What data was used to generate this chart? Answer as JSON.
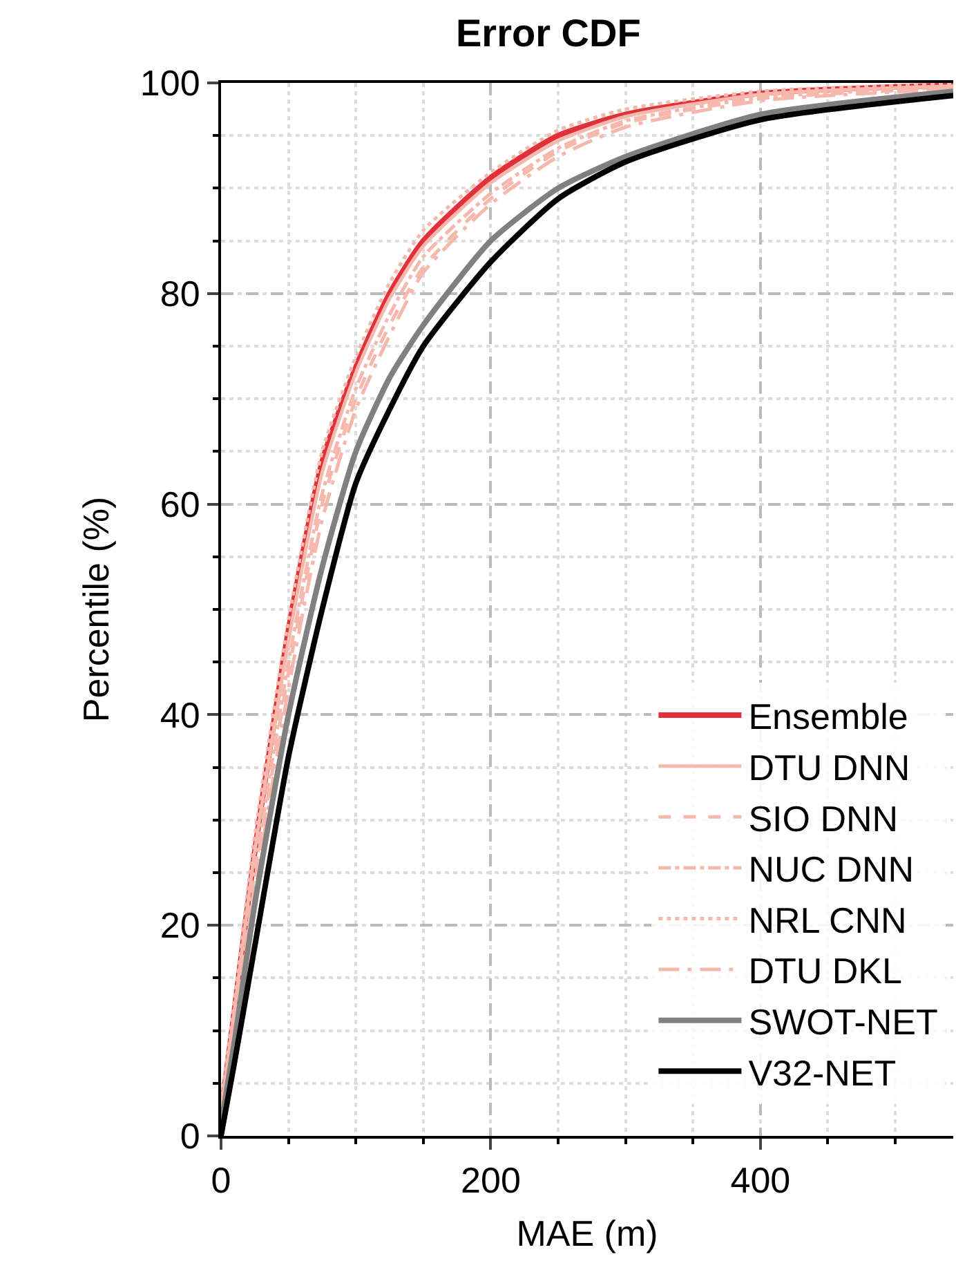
{
  "chart_data": {
    "type": "line",
    "title": "Error CDF",
    "xlabel": "MAE (m)",
    "ylabel": "Percentile (%)",
    "xlim": [
      0,
      543
    ],
    "xticks": [
      0,
      200,
      400
    ],
    "ylim": [
      0,
      100
    ],
    "yticks": [
      0,
      20,
      40,
      60,
      80,
      100
    ],
    "grid": true,
    "legend": "bottom right",
    "marker": "none",
    "x": [
      0,
      10,
      25,
      50,
      75,
      100,
      125,
      150,
      200,
      250,
      300,
      400,
      543
    ],
    "series": [
      {
        "name": "Ensemble",
        "color": "#e0303a",
        "line_style": "solid",
        "values": [
          2,
          12,
          27,
          48,
          64,
          73,
          80,
          85,
          91,
          95,
          97,
          99,
          99.8
        ]
      },
      {
        "name": "DTU DNN",
        "color": "#f6b8ad",
        "line_style": "solid",
        "values": [
          2.5,
          12,
          27,
          47,
          63,
          72.5,
          79.5,
          84.5,
          90.5,
          94.5,
          96.8,
          98.9,
          99.7
        ]
      },
      {
        "name": "SIO DNN",
        "color": "#f6b8ad",
        "line_style": "dashed",
        "values": [
          1.5,
          10,
          24,
          44,
          60,
          70,
          77,
          82.5,
          89,
          93.5,
          96.2,
          98.5,
          99.5
        ]
      },
      {
        "name": "NUC DNN",
        "color": "#f6b8ad",
        "line_style": "dashdot",
        "values": [
          2,
          11,
          25,
          45,
          61,
          71,
          78,
          83.5,
          89.5,
          93.8,
          96.4,
          98.6,
          99.6
        ]
      },
      {
        "name": "NRL CNN",
        "color": "#f6b8ad",
        "line_style": "dotted",
        "values": [
          3,
          13,
          28.5,
          49,
          65,
          74,
          81,
          86,
          91.5,
          95.5,
          97.5,
          99.2,
          99.9
        ]
      },
      {
        "name": "DTU DKL",
        "color": "#f6b8ad",
        "line_style": "dashdotdot",
        "values": [
          1,
          9.5,
          23,
          42.5,
          58.5,
          69,
          76,
          82,
          88.5,
          93,
          95.8,
          98.3,
          99.4
        ]
      },
      {
        "name": "SWOT-NET",
        "color": "#808080",
        "line_style": "solid",
        "values": [
          1,
          9,
          22,
          40,
          54,
          65,
          72,
          77,
          85,
          90,
          93,
          97,
          99.2
        ]
      },
      {
        "name": "V32-NET",
        "color": "#000000",
        "line_style": "solid",
        "values": [
          0,
          7,
          18,
          36,
          50,
          62,
          69,
          75,
          83,
          89,
          92.5,
          96.5,
          98.8
        ]
      }
    ]
  }
}
